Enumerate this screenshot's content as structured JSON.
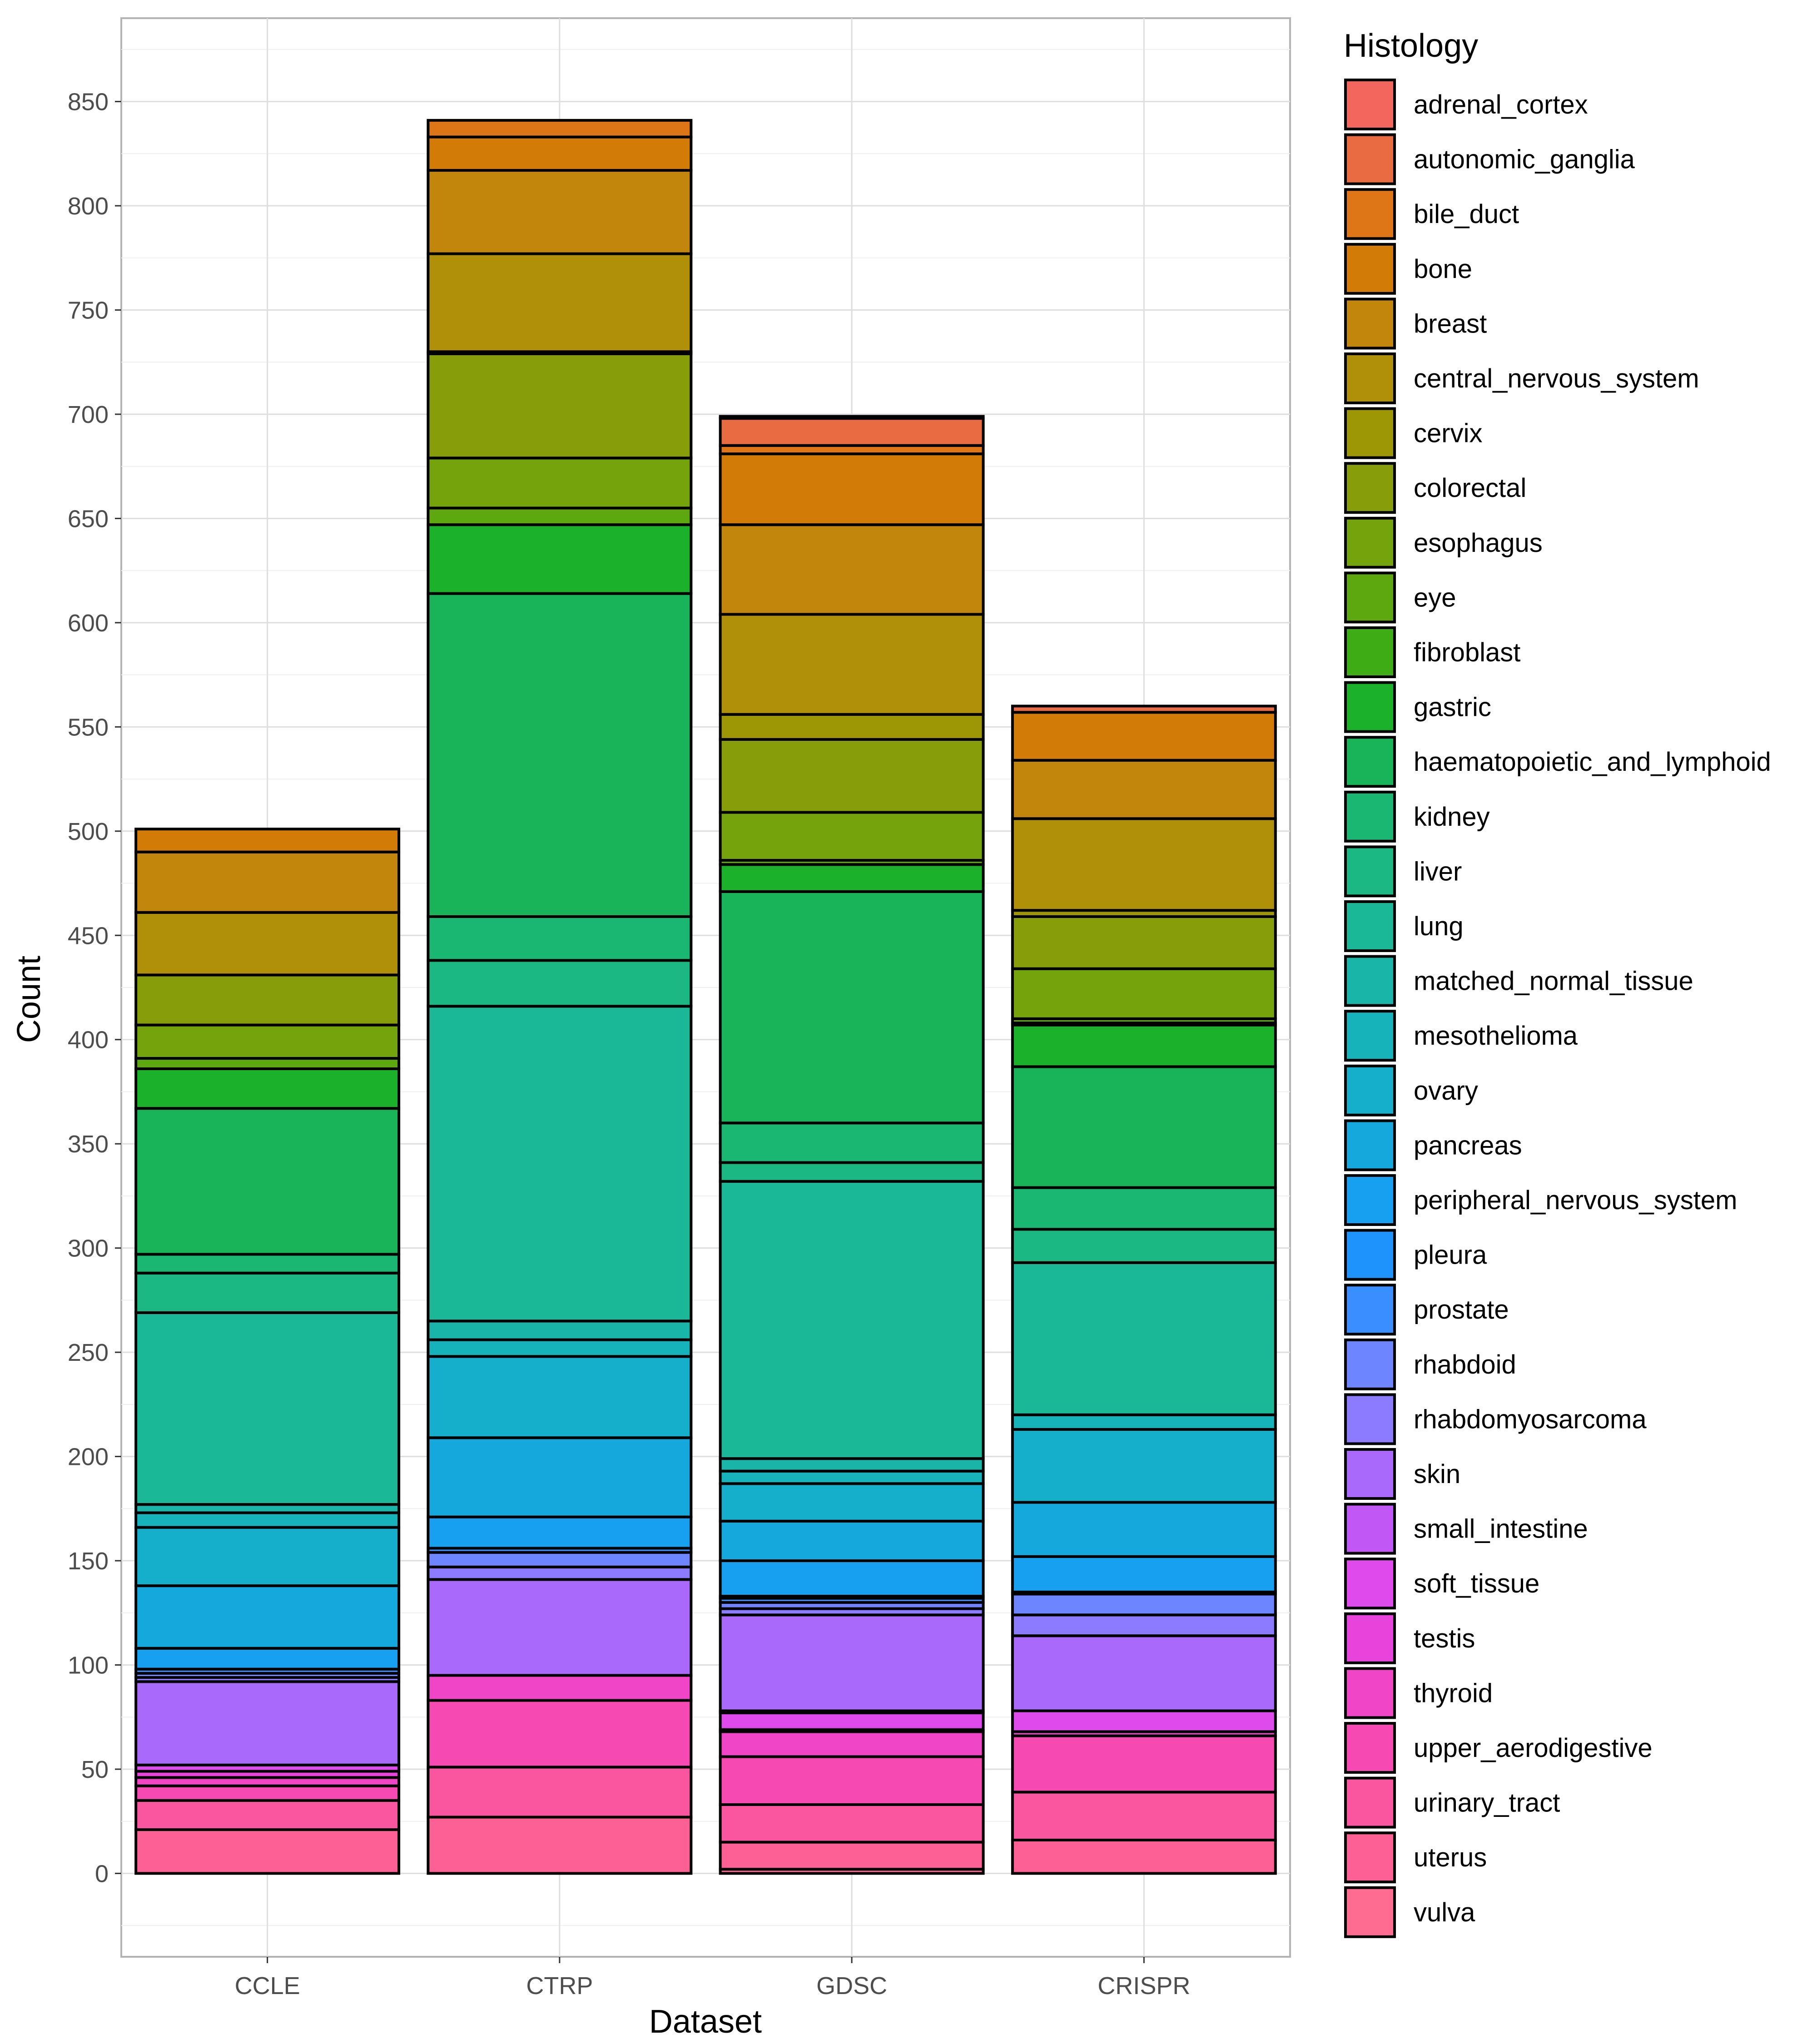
{
  "chart_data": {
    "type": "bar",
    "stacked": true,
    "title": "",
    "xlabel": "Dataset",
    "ylabel": "Count",
    "ylim": [
      -40,
      890
    ],
    "y_ticks": [
      0,
      50,
      100,
      150,
      200,
      250,
      300,
      350,
      400,
      450,
      500,
      550,
      600,
      650,
      700,
      750,
      800,
      850
    ],
    "grid": true,
    "legend_position": "right",
    "legend_title": "Histology",
    "categories": [
      "CCLE",
      "CTRP",
      "GDSC",
      "CRISPR"
    ],
    "series": [
      {
        "name": "vulva",
        "color": "#FF6C91",
        "values": [
          0,
          0,
          2,
          0
        ]
      },
      {
        "name": "uterus",
        "color": "#FD6094",
        "values": [
          21,
          27,
          13,
          16
        ]
      },
      {
        "name": "urinary_tract",
        "color": "#FA56A0",
        "values": [
          14,
          24,
          18,
          23
        ]
      },
      {
        "name": "upper_aerodigestive",
        "color": "#F64AB2",
        "values": [
          7,
          32,
          23,
          27
        ]
      },
      {
        "name": "thyroid",
        "color": "#F045C6",
        "values": [
          4,
          12,
          12,
          2
        ]
      },
      {
        "name": "testis",
        "color": "#E843DB",
        "values": [
          3,
          0,
          1,
          0
        ]
      },
      {
        "name": "soft_tissue",
        "color": "#DE4AEB",
        "values": [
          3,
          0,
          8,
          10
        ]
      },
      {
        "name": "small_intestine",
        "color": "#C158F5",
        "values": [
          0,
          0,
          1,
          0
        ]
      },
      {
        "name": "skin",
        "color": "#A96AFC",
        "values": [
          40,
          46,
          46,
          36
        ]
      },
      {
        "name": "rhabdomyosarcoma",
        "color": "#8C7BFF",
        "values": [
          2,
          6,
          3,
          10
        ]
      },
      {
        "name": "rhabdoid",
        "color": "#6D85FF",
        "values": [
          2,
          7,
          3,
          10
        ]
      },
      {
        "name": "prostate",
        "color": "#3B8EFF",
        "values": [
          2,
          2,
          2,
          1
        ]
      },
      {
        "name": "pleura",
        "color": "#1E93FC",
        "values": [
          0,
          0,
          1,
          0
        ]
      },
      {
        "name": "peripheral_nervous_system",
        "color": "#17A0F0",
        "values": [
          10,
          15,
          17,
          17
        ]
      },
      {
        "name": "pancreas",
        "color": "#15A8DC",
        "values": [
          30,
          38,
          19,
          26
        ]
      },
      {
        "name": "ovary",
        "color": "#16AFCB",
        "values": [
          28,
          39,
          18,
          35
        ]
      },
      {
        "name": "mesothelioma",
        "color": "#17B3BB",
        "values": [
          7,
          8,
          6,
          7
        ]
      },
      {
        "name": "matched_normal_tissue",
        "color": "#18B5A8",
        "values": [
          4,
          9,
          6,
          0
        ]
      },
      {
        "name": "lung",
        "color": "#1AB896",
        "values": [
          92,
          151,
          133,
          73
        ]
      },
      {
        "name": "liver",
        "color": "#1BB883",
        "values": [
          19,
          22,
          9,
          16
        ]
      },
      {
        "name": "kidney",
        "color": "#1AB772",
        "values": [
          9,
          21,
          19,
          20
        ]
      },
      {
        "name": "haematopoietic_and_lymphoid",
        "color": "#19B45A",
        "values": [
          70,
          155,
          111,
          58
        ]
      },
      {
        "name": "gastric",
        "color": "#1CB12A",
        "values": [
          19,
          33,
          13,
          20
        ]
      },
      {
        "name": "fibroblast",
        "color": "#3DAC15",
        "values": [
          0,
          0,
          0,
          1
        ]
      },
      {
        "name": "eye",
        "color": "#5EA80F",
        "values": [
          5,
          8,
          2,
          2
        ]
      },
      {
        "name": "esophagus",
        "color": "#75A30C",
        "values": [
          16,
          24,
          23,
          24
        ]
      },
      {
        "name": "colorectal",
        "color": "#889D0A",
        "values": [
          24,
          50,
          35,
          25
        ]
      },
      {
        "name": "cervix",
        "color": "#9D9706",
        "values": [
          0,
          1,
          12,
          3
        ]
      },
      {
        "name": "central_nervous_system",
        "color": "#B08F09",
        "values": [
          30,
          47,
          48,
          44
        ]
      },
      {
        "name": "breast",
        "color": "#C2860C",
        "values": [
          29,
          40,
          43,
          28
        ]
      },
      {
        "name": "bone",
        "color": "#D27C07",
        "values": [
          11,
          16,
          34,
          23
        ]
      },
      {
        "name": "bile_duct",
        "color": "#DE7517",
        "values": [
          0,
          8,
          4,
          0
        ]
      },
      {
        "name": "autonomic_ganglia",
        "color": "#E86B42",
        "values": [
          0,
          0,
          13,
          3
        ]
      },
      {
        "name": "adrenal_cortex",
        "color": "#F2665E",
        "values": [
          0,
          0,
          1,
          0
        ]
      }
    ]
  }
}
